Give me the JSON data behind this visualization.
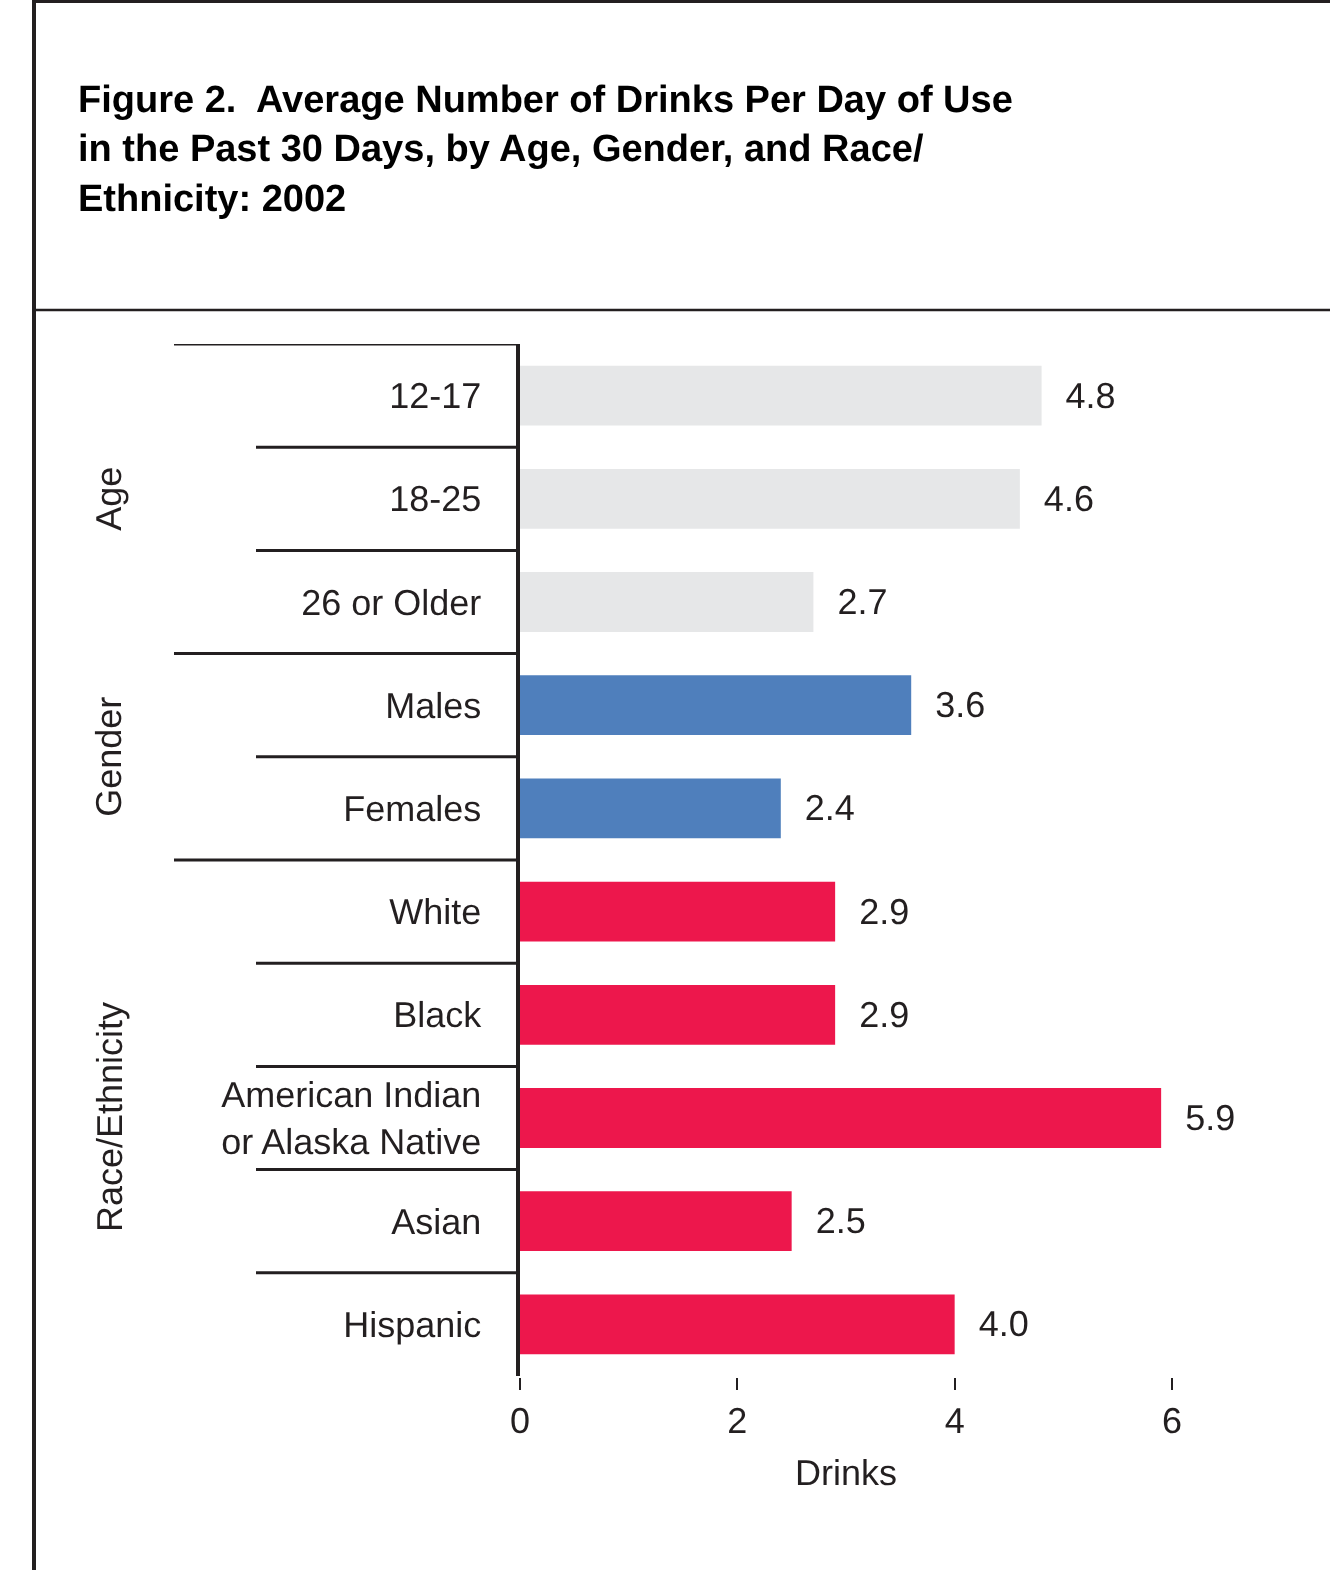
{
  "chart_data": {
    "type": "bar",
    "orientation": "horizontal",
    "title": "Figure 2.  Average Number of Drinks Per Day of Use\nin the Past 30 Days, by Age, Gender, and Race/\nEthnicity: 2002",
    "xlabel": "Drinks",
    "categories": [
      "12-17",
      "18-25",
      "26 or Older",
      "Males",
      "Females",
      "White",
      "Black",
      "American Indian\nor Alaska Native",
      "Asian",
      "Hispanic"
    ],
    "values": [
      4.8,
      4.6,
      2.7,
      3.6,
      2.4,
      2.9,
      2.9,
      5.9,
      2.5,
      4.0
    ],
    "colors": [
      "#e6e7e8",
      "#e6e7e8",
      "#e6e7e8",
      "#4f7fbc",
      "#4f7fbc",
      "#ed174c",
      "#ed174c",
      "#ed174c",
      "#ed174c",
      "#ed174c"
    ],
    "annotations": [
      "Age",
      "Gender",
      "Race/Ethnicity"
    ],
    "xlim": [
      0,
      6
    ],
    "xticks": [
      0,
      2,
      4,
      6
    ],
    "value_labels": [
      "4.8",
      "4.6",
      "2.7",
      "3.6",
      "2.4",
      "2.9",
      "2.9",
      "5.9",
      "2.5",
      "4.0"
    ]
  }
}
